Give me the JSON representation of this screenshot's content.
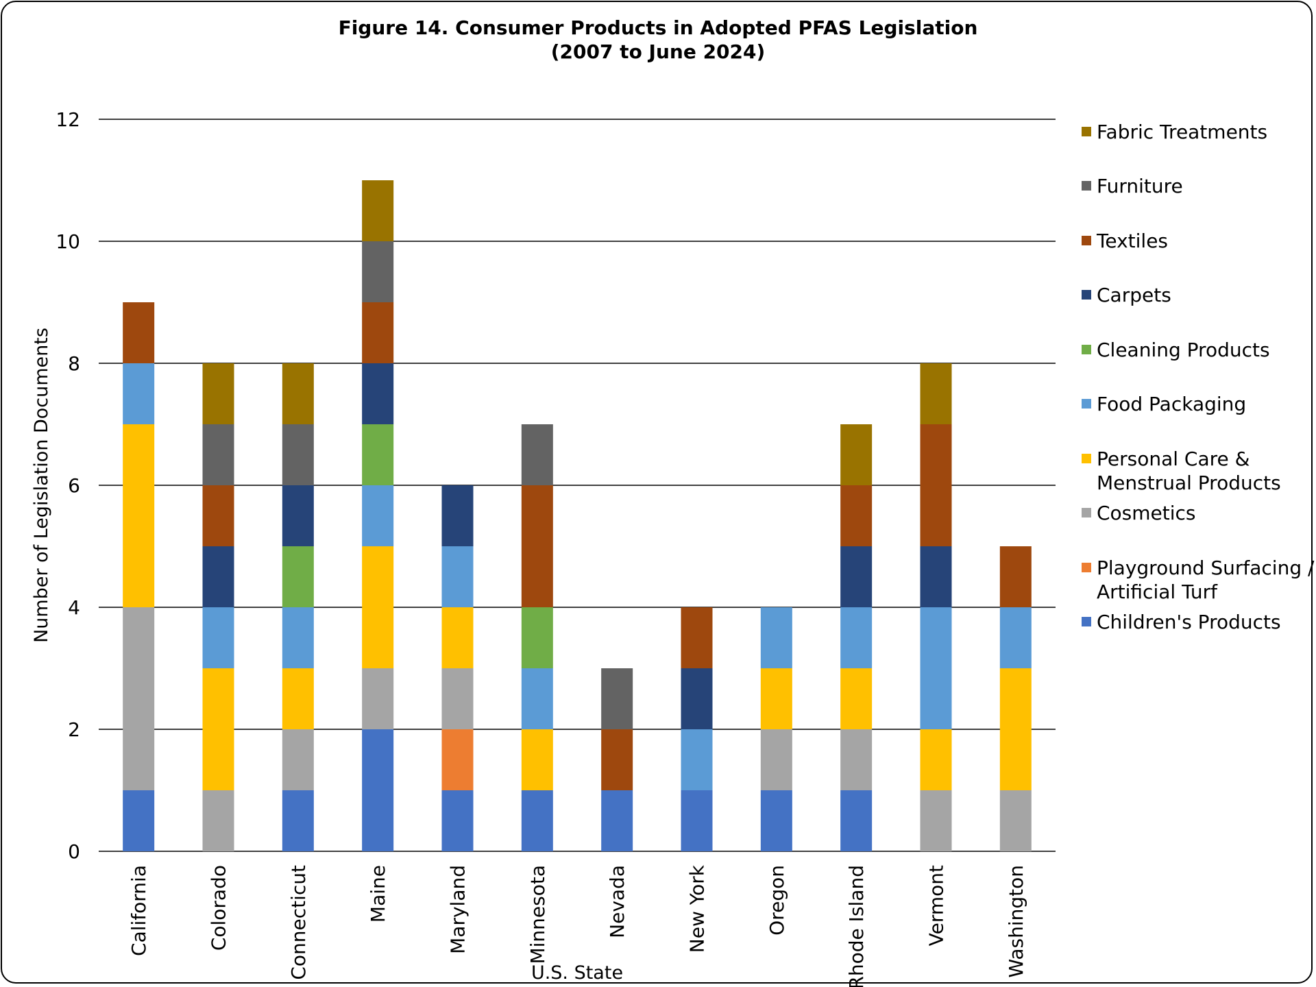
{
  "chart_data": {
    "type": "bar",
    "stacked": true,
    "title": "Figure 14. Consumer Products in Adopted PFAS Legislation",
    "subtitle": "(2007 to June 2024)",
    "xlabel": "U.S. State",
    "ylabel": "Number of Legislation Documents",
    "ylim": [
      0,
      12
    ],
    "yticks": [
      "0",
      "2",
      "4",
      "6",
      "8",
      "10",
      "12"
    ],
    "grid": true,
    "legend_position": "right",
    "categories": [
      "California",
      "Colorado",
      "Connecticut",
      "Maine",
      "Maryland",
      "Minnesota",
      "Nevada",
      "New York",
      "Oregon",
      "Rhode Island",
      "Vermont",
      "Washington"
    ],
    "series": [
      {
        "name": "Children's Products",
        "color": "#4472C4",
        "values": [
          1,
          0,
          1,
          2,
          1,
          1,
          1,
          1,
          1,
          1,
          0,
          0
        ]
      },
      {
        "name": "Playground Surfacing / Artificial Turf",
        "legend_lines": [
          "Playground Surfacing /",
          "Artificial Turf"
        ],
        "color": "#ED7D31",
        "values": [
          0,
          0,
          0,
          0,
          1,
          0,
          0,
          0,
          0,
          0,
          0,
          0
        ]
      },
      {
        "name": "Cosmetics",
        "color": "#A5A5A5",
        "values": [
          3,
          1,
          1,
          1,
          1,
          0,
          0,
          0,
          1,
          1,
          1,
          1
        ]
      },
      {
        "name": "Personal Care & Menstrual Products",
        "legend_lines": [
          "Personal Care &",
          "Menstrual Products"
        ],
        "color": "#FFC000",
        "values": [
          3,
          2,
          1,
          2,
          1,
          1,
          0,
          0,
          1,
          1,
          1,
          2
        ]
      },
      {
        "name": "Food Packaging",
        "color": "#5B9BD5",
        "values": [
          1,
          1,
          1,
          1,
          1,
          1,
          0,
          1,
          1,
          1,
          2,
          1
        ]
      },
      {
        "name": "Cleaning Products",
        "color": "#70AD47",
        "values": [
          0,
          0,
          1,
          1,
          0,
          1,
          0,
          0,
          0,
          0,
          0,
          0
        ]
      },
      {
        "name": "Carpets",
        "color": "#264478",
        "values": [
          0,
          1,
          1,
          1,
          1,
          0,
          0,
          1,
          0,
          1,
          1,
          0
        ]
      },
      {
        "name": "Textiles",
        "color": "#9E480E",
        "values": [
          1,
          1,
          0,
          1,
          0,
          2,
          1,
          1,
          0,
          1,
          2,
          1
        ]
      },
      {
        "name": "Furniture",
        "color": "#636363",
        "values": [
          0,
          1,
          1,
          1,
          0,
          1,
          1,
          0,
          0,
          0,
          0,
          0
        ]
      },
      {
        "name": "Fabric Treatments",
        "color": "#997300",
        "values": [
          0,
          1,
          1,
          1,
          0,
          0,
          0,
          0,
          0,
          1,
          1,
          0
        ]
      }
    ],
    "legend_order": [
      "Fabric Treatments",
      "Furniture",
      "Textiles",
      "Carpets",
      "Cleaning Products",
      "Food Packaging",
      "Personal Care & Menstrual Products",
      "Cosmetics",
      "Playground Surfacing / Artificial Turf",
      "Children's Products"
    ]
  }
}
